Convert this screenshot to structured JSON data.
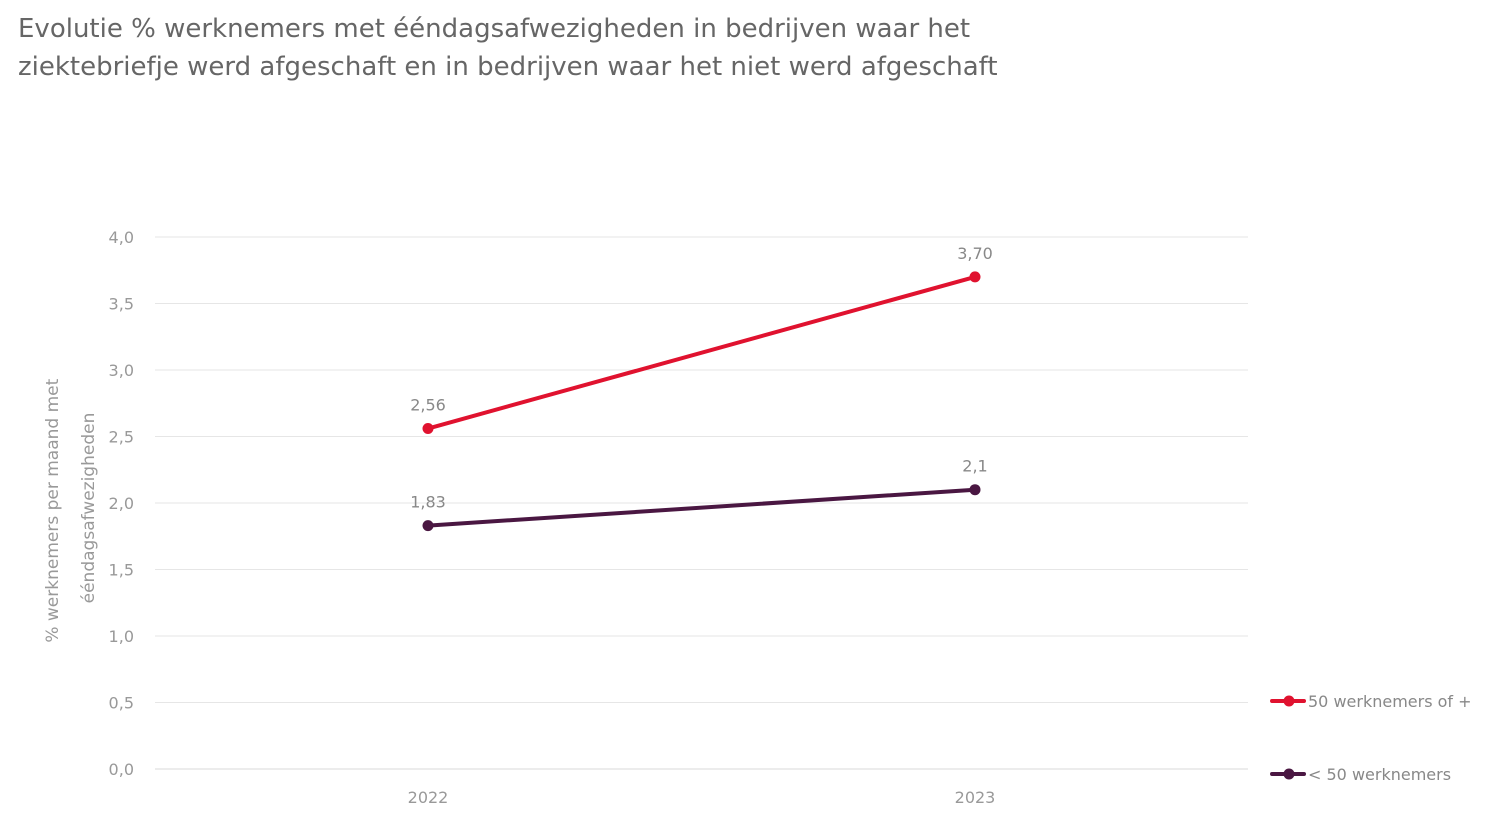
{
  "chart_data": {
    "type": "line",
    "title_lines": [
      "Evolutie % werknemers met ééndagsafwezigheden in bedrijven waar het",
      "ziektebriefje werd afgeschaft en in bedrijven waar het niet werd afgeschaft"
    ],
    "ylabel_lines": [
      "% werknemers per maand met",
      "ééndagsafwezigheden"
    ],
    "xlabel": "",
    "categories": [
      "2022",
      "2023"
    ],
    "ylim": [
      0,
      4.0
    ],
    "yticks": [
      "0,0",
      "0,5",
      "1,0",
      "1,5",
      "2,0",
      "2,5",
      "3,0",
      "3,5",
      "4,0"
    ],
    "grid": true,
    "legend_position": "right",
    "series": [
      {
        "name": "50 werknemers of +",
        "values": [
          2.56,
          3.7
        ],
        "labels": [
          "2,56",
          "3,70"
        ],
        "color": "#e0122f"
      },
      {
        "name": "< 50 werknemers",
        "values": [
          1.83,
          2.1
        ],
        "labels": [
          "1,83",
          "2,1"
        ],
        "color": "#4a1742"
      }
    ]
  }
}
